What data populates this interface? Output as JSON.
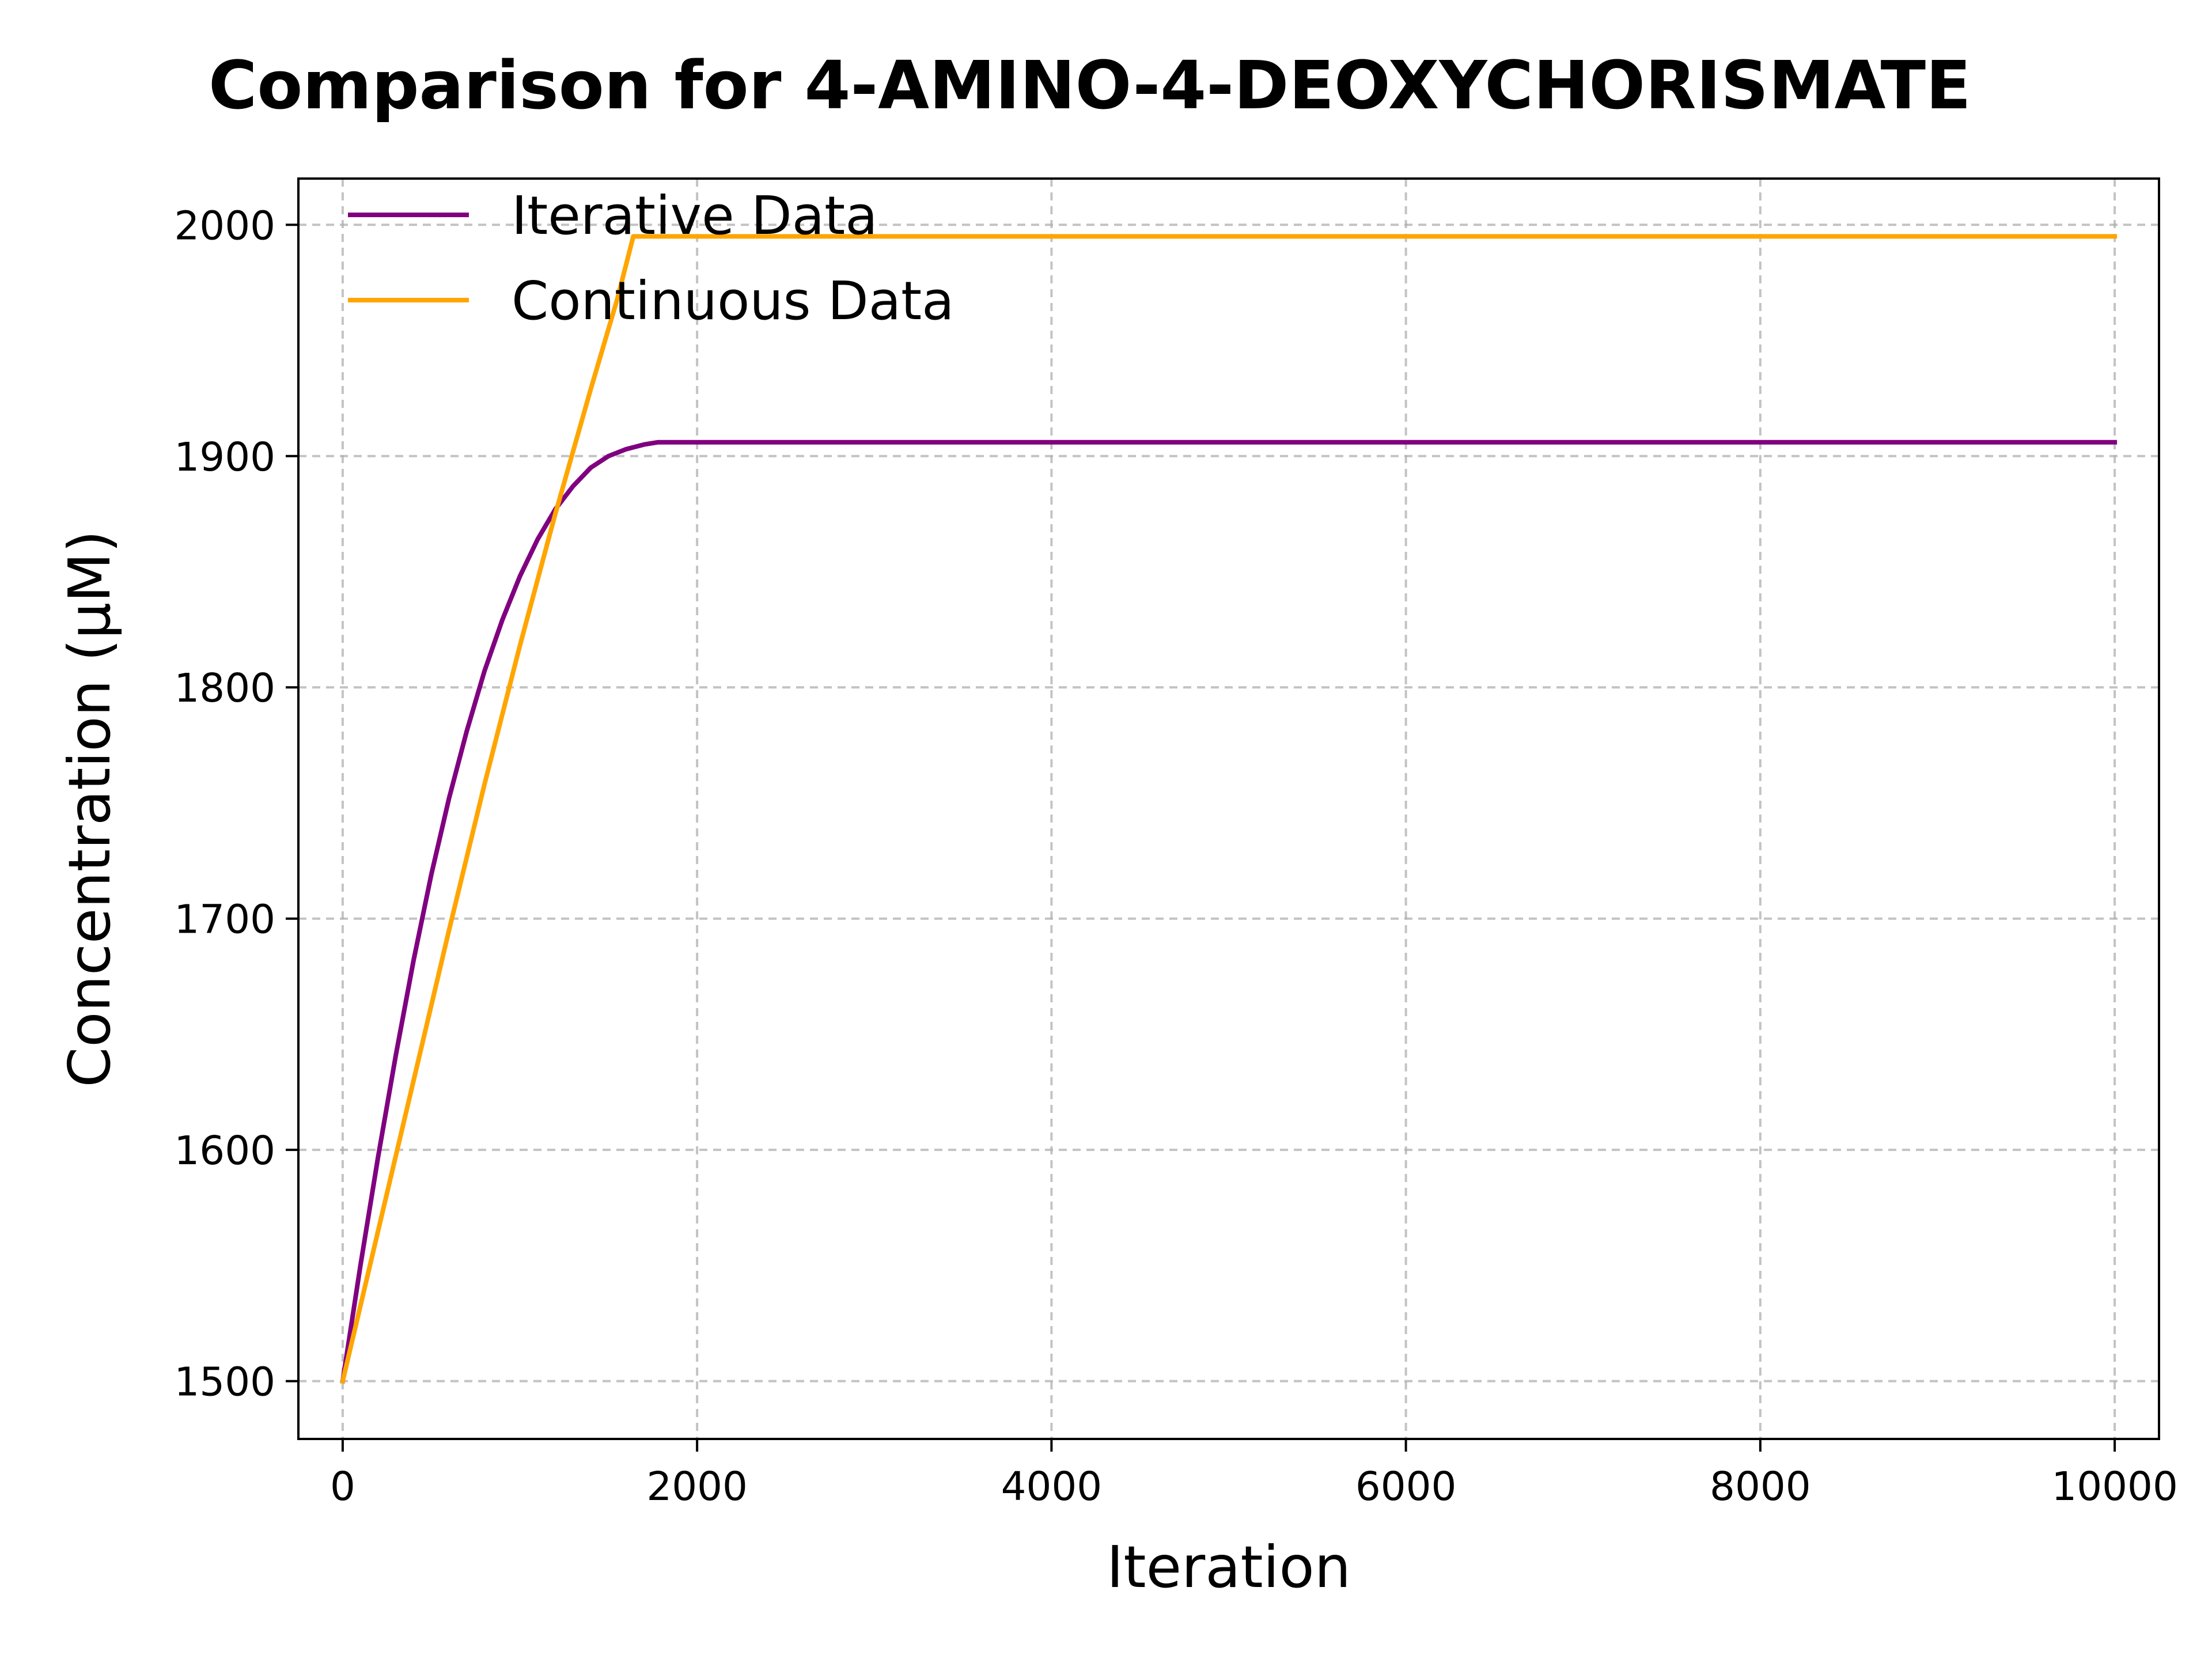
{
  "chart_data": {
    "type": "line",
    "title": "Comparison for 4-AMINO-4-DEOXYCHORISMATE",
    "xlabel": "Iteration",
    "ylabel": "Concentration (μM)",
    "xlim": [
      -250,
      10250
    ],
    "ylim": [
      1475,
      2020
    ],
    "xticks": [
      0,
      2000,
      4000,
      6000,
      8000,
      10000
    ],
    "yticks": [
      1500,
      1600,
      1700,
      1800,
      1900,
      2000
    ],
    "grid": true,
    "legend": {
      "position": "upper-left"
    },
    "series": [
      {
        "name": "Iterative Data",
        "color": "#800080",
        "x": [
          0,
          100,
          200,
          300,
          400,
          500,
          600,
          700,
          800,
          900,
          1000,
          1100,
          1200,
          1300,
          1400,
          1500,
          1600,
          1700,
          1780,
          2000,
          4000,
          6000,
          8000,
          10000
        ],
        "y": [
          1500,
          1550,
          1597,
          1641,
          1682,
          1719,
          1752,
          1781,
          1807,
          1829,
          1848,
          1864,
          1877,
          1887,
          1895,
          1900,
          1903,
          1905,
          1906,
          1906,
          1906,
          1906,
          1906,
          1906
        ]
      },
      {
        "name": "Continuous Data",
        "color": "#FFA500",
        "x": [
          0,
          200,
          400,
          600,
          800,
          1000,
          1200,
          1400,
          1550,
          1640,
          2000,
          4000,
          6000,
          8000,
          10000
        ],
        "y": [
          1500,
          1565,
          1630,
          1695,
          1758,
          1818,
          1875,
          1929,
          1968,
          1995,
          1995,
          1995,
          1995,
          1995,
          1995
        ]
      }
    ]
  }
}
